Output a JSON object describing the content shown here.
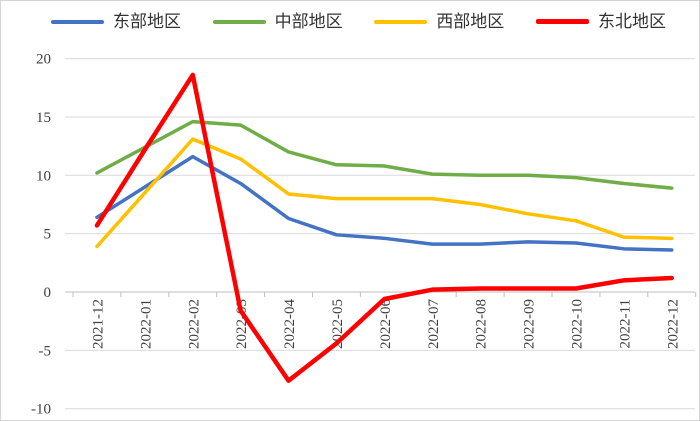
{
  "chart_data": {
    "type": "line",
    "title": "",
    "xlabel": "",
    "ylabel": "",
    "categories": [
      "2021-12",
      "2022-01",
      "2022-02",
      "2022-03",
      "2022-04",
      "2022-05",
      "2022-06",
      "2022-07",
      "2022-08",
      "2022-09",
      "2022-10",
      "2022-11",
      "2022-12"
    ],
    "series": [
      {
        "key": "east",
        "name": "东部地区",
        "color": "#4472C4",
        "line_width": 3.5,
        "values": [
          6.4,
          9.0,
          11.6,
          9.3,
          6.3,
          4.9,
          4.6,
          4.1,
          4.1,
          4.3,
          4.2,
          3.7,
          3.6
        ]
      },
      {
        "key": "central",
        "name": "中部地区",
        "color": "#70AD47",
        "line_width": 3.5,
        "values": [
          10.2,
          12.4,
          14.6,
          14.3,
          12.0,
          10.9,
          10.8,
          10.1,
          10.0,
          10.0,
          9.8,
          9.3,
          8.9
        ]
      },
      {
        "key": "west",
        "name": "西部地区",
        "color": "#FFC000",
        "line_width": 3.5,
        "values": [
          3.9,
          8.5,
          13.1,
          11.4,
          8.4,
          8.0,
          8.0,
          8.0,
          7.5,
          6.7,
          6.1,
          4.7,
          4.6
        ]
      },
      {
        "key": "northeast",
        "name": "东北地区",
        "color": "#FF0000",
        "line_width": 4.5,
        "values": [
          5.7,
          12.2,
          18.6,
          -1.6,
          -7.6,
          -4.4,
          -0.6,
          0.2,
          0.3,
          0.3,
          0.3,
          1.0,
          1.2
        ]
      }
    ],
    "ylim": [
      -10,
      20
    ],
    "yticks": [
      20,
      15,
      10,
      5,
      0,
      -5,
      -10
    ],
    "x_label_rotation": 90,
    "grid": true,
    "legend_position": "top",
    "colors": {
      "gridline": "#d9d9d9",
      "axis": "#bfbfbf",
      "tick_text": "#404040",
      "legend_text": "#333333",
      "background": "#ffffff"
    }
  }
}
